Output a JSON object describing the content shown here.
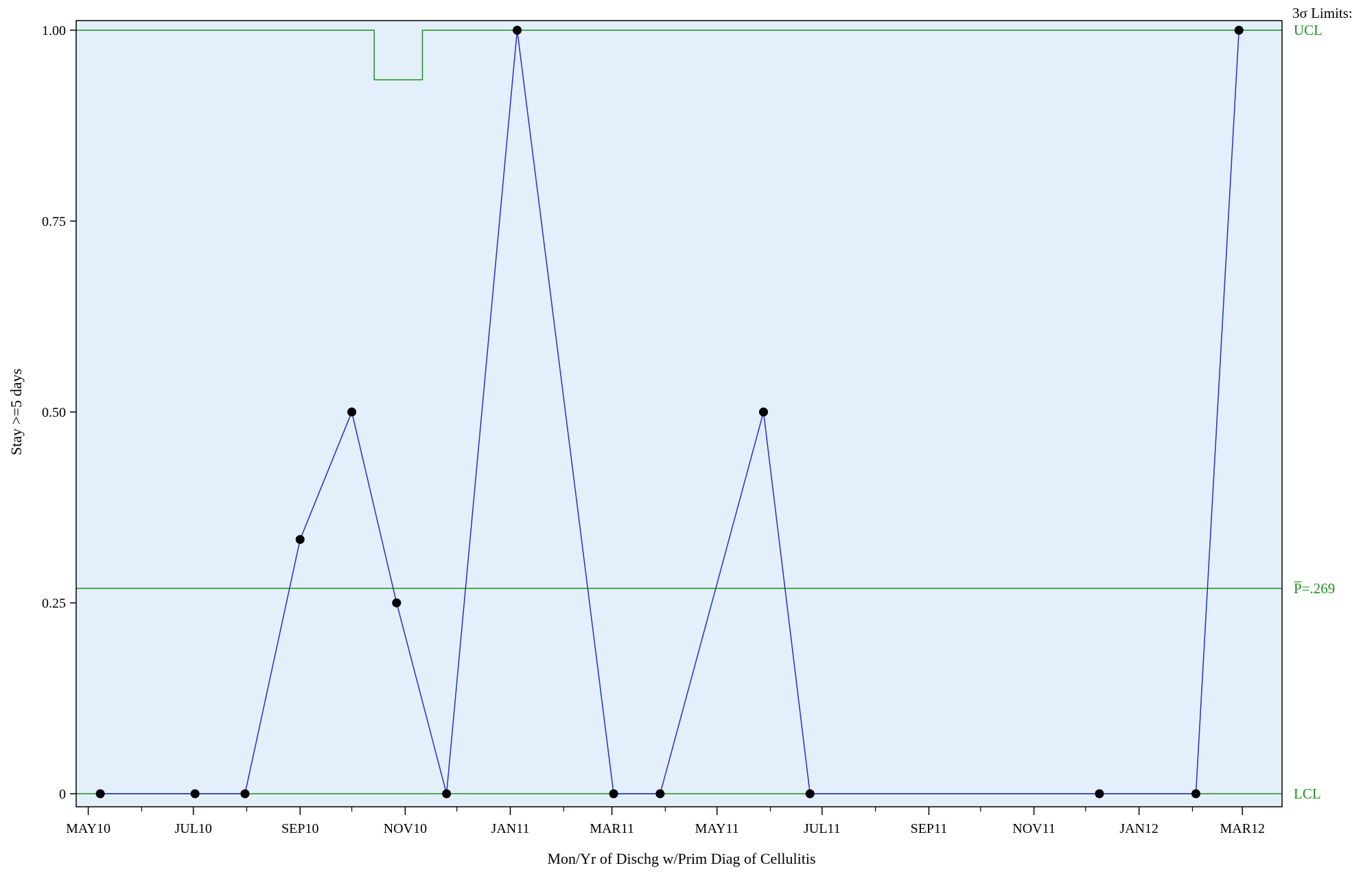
{
  "chart_data": {
    "type": "line",
    "chart_kind": "p-chart",
    "xlabel": "Mon/Yr of Dischg w/Prim Diag of Cellulitis",
    "ylabel": "Stay >=5 days",
    "ylim": [
      0,
      1
    ],
    "xlim": [
      "2010-04-24",
      "2012-03-24"
    ],
    "y_ticks": [
      0,
      0.25,
      0.5,
      0.75,
      1.0
    ],
    "y_tick_labels": [
      "0",
      "0.25",
      "0.50",
      "0.75",
      "1.00"
    ],
    "x_major_ticks": [
      "2010-05-01",
      "2010-07-01",
      "2010-09-01",
      "2010-11-01",
      "2011-01-01",
      "2011-03-01",
      "2011-05-01",
      "2011-07-01",
      "2011-09-01",
      "2011-11-01",
      "2012-01-01",
      "2012-03-01"
    ],
    "x_tick_labels": [
      "MAY10",
      "JUL10",
      "SEP10",
      "NOV10",
      "JAN11",
      "MAR11",
      "MAY11",
      "JUL11",
      "SEP11",
      "NOV11",
      "JAN12",
      "MAR12"
    ],
    "x_minor_ticks": [
      "2010-06-01",
      "2010-08-01",
      "2010-10-01",
      "2010-12-01",
      "2011-02-01",
      "2011-04-01",
      "2011-06-01",
      "2011-08-01",
      "2011-10-01",
      "2011-12-01",
      "2012-02-01"
    ],
    "series": [
      {
        "x": [
          "2010-05-08",
          "2010-07-02",
          "2010-07-31",
          "2010-09-01",
          "2010-10-01",
          "2010-10-27",
          "2010-11-25",
          "2011-01-05",
          "2011-03-02",
          "2011-03-29",
          "2011-05-28",
          "2011-06-24",
          "2011-12-09",
          "2012-02-03",
          "2012-02-28"
        ],
        "values": [
          0,
          0,
          0,
          0.333,
          0.5,
          0.25,
          0,
          1.0,
          0,
          0,
          0.5,
          0,
          0,
          0,
          1.0
        ]
      }
    ],
    "center_line": {
      "value": 0.269,
      "label": "P̅=.269"
    },
    "ucl": {
      "label": "UCL",
      "segments": [
        {
          "x": [
            "2010-04-24",
            "2010-10-14"
          ],
          "value": 1.0
        },
        {
          "x": [
            "2010-10-14",
            "2010-11-11"
          ],
          "value": 0.935
        },
        {
          "x": [
            "2010-11-11",
            "2012-03-24"
          ],
          "value": 1.0
        }
      ]
    },
    "lcl": {
      "value": 0,
      "label": "LCL"
    },
    "limits_header": "3σ Limits:",
    "colors": {
      "plot_background": "#e3effb",
      "series_line": "#2a2ad0",
      "marker": "#000000",
      "control_lines": "#1f8f1f",
      "frame": "#000000"
    },
    "grid": false,
    "legend": "none"
  }
}
